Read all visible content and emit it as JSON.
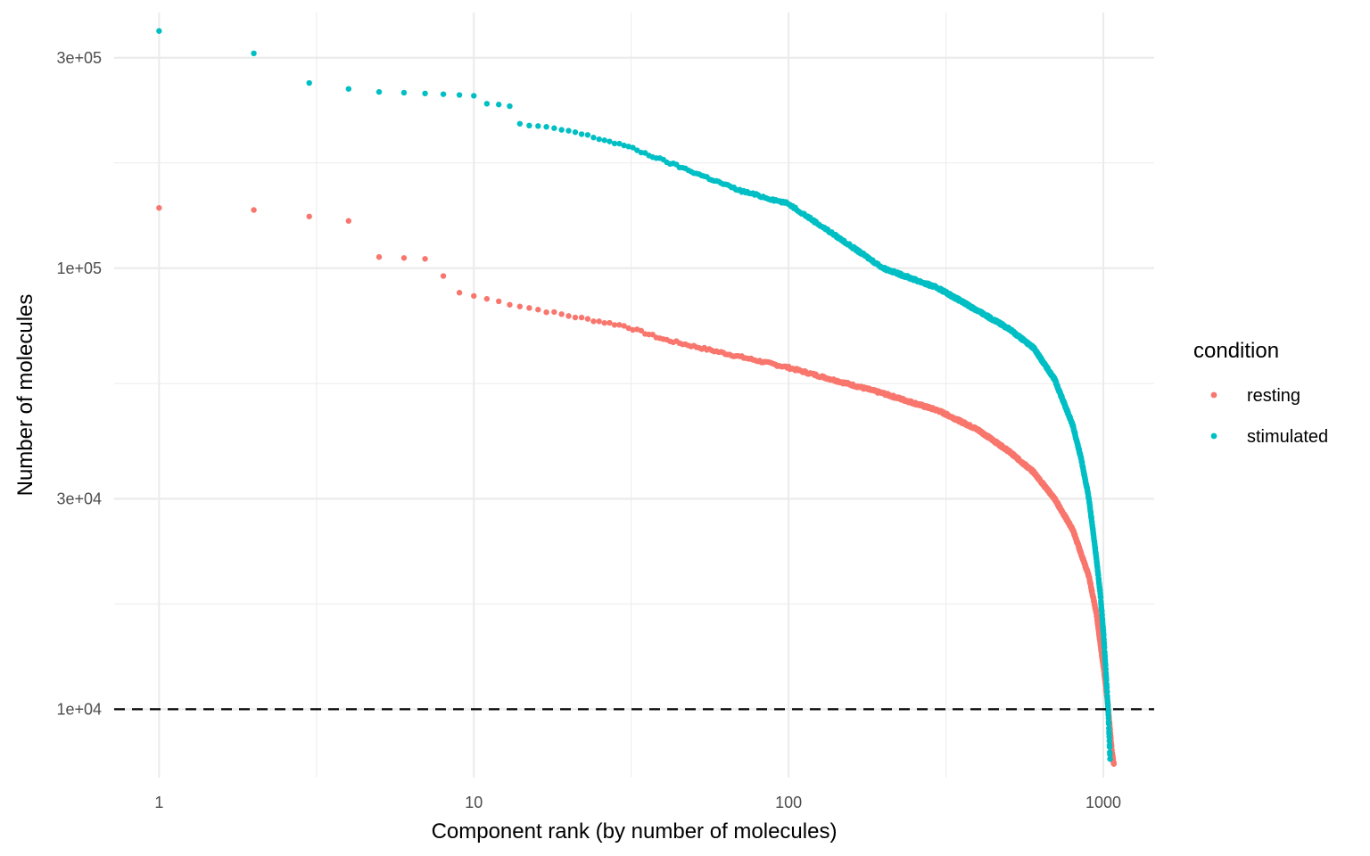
{
  "chart_data": {
    "type": "scatter",
    "title": "",
    "xlabel": "Component rank (by number of molecules)",
    "ylabel": "Number of molecules",
    "xscale": "log10",
    "yscale": "log10",
    "xlim": [
      0.72,
      1450
    ],
    "ylim": [
      7000,
      380000
    ],
    "x_ticks": [
      {
        "value": 1,
        "label": "1"
      },
      {
        "value": 10,
        "label": "10"
      },
      {
        "value": 100,
        "label": "100"
      },
      {
        "value": 1000,
        "label": "1000"
      }
    ],
    "x_minor_ticks": [
      3.1623,
      31.623,
      316.23
    ],
    "y_ticks": [
      {
        "value": 10000,
        "label": "1e+04"
      },
      {
        "value": 30000,
        "label": "3e+04"
      },
      {
        "value": 100000,
        "label": "1e+05"
      },
      {
        "value": 300000,
        "label": "3e+05"
      }
    ],
    "y_minor_ticks": [
      17320,
      54770,
      173200
    ],
    "hline": {
      "y": 10000,
      "style": "dashed",
      "color": "#000000"
    },
    "grid": true,
    "legend": {
      "title": "condition",
      "position": "right"
    },
    "series": [
      {
        "name": "resting",
        "color": "#F8766D",
        "n_points": 1080,
        "top_values": [
          137000,
          135500,
          131000,
          128000,
          106000,
          105500,
          105000,
          96000,
          88000,
          86500
        ],
        "profile": [
          [
            10,
            86500
          ],
          [
            13,
            83000
          ],
          [
            20,
            78000
          ],
          [
            30,
            74000
          ],
          [
            40,
            69000
          ],
          [
            50,
            66500
          ],
          [
            70,
            63000
          ],
          [
            100,
            59500
          ],
          [
            150,
            55000
          ],
          [
            200,
            52000
          ],
          [
            300,
            47500
          ],
          [
            400,
            43000
          ],
          [
            500,
            38500
          ],
          [
            600,
            34500
          ],
          [
            700,
            30000
          ],
          [
            800,
            25500
          ],
          [
            900,
            20000
          ],
          [
            950,
            16500
          ],
          [
            1000,
            12500
          ],
          [
            1030,
            10500
          ],
          [
            1050,
            9000
          ],
          [
            1065,
            8000
          ],
          [
            1080,
            7500
          ]
        ]
      },
      {
        "name": "stimulated",
        "color": "#00BFC4",
        "n_points": 1050,
        "top_values": [
          345000,
          307000,
          263000,
          255000,
          251000,
          250000,
          249000,
          248000,
          247000,
          246000,
          236000,
          235000,
          233000
        ],
        "profile": [
          [
            13,
            233000
          ],
          [
            14,
            212000
          ],
          [
            20,
            205000
          ],
          [
            30,
            190000
          ],
          [
            50,
            165000
          ],
          [
            70,
            150000
          ],
          [
            100,
            140000
          ],
          [
            150,
            115000
          ],
          [
            200,
            100000
          ],
          [
            300,
            90000
          ],
          [
            400,
            80000
          ],
          [
            500,
            73000
          ],
          [
            600,
            66000
          ],
          [
            700,
            56000
          ],
          [
            800,
            44000
          ],
          [
            850,
            37000
          ],
          [
            900,
            30000
          ],
          [
            950,
            22000
          ],
          [
            980,
            18000
          ],
          [
            1000,
            15000
          ],
          [
            1020,
            12000
          ],
          [
            1035,
            10000
          ],
          [
            1045,
            8500
          ],
          [
            1050,
            7700
          ]
        ]
      }
    ]
  }
}
